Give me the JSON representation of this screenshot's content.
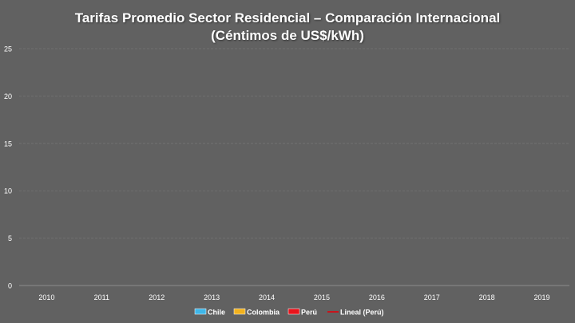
{
  "chart_data": {
    "type": "bar",
    "title_line1": "Tarifas Promedio Sector Residencial – Comparación Internacional",
    "title_line2": "(Céntimos de US$/kWh)",
    "categories": [
      "2010",
      "2011",
      "2012",
      "2013",
      "2014",
      "2015",
      "2016",
      "2017",
      "2018",
      "2019"
    ],
    "yticks": [
      "0",
      "5",
      "10",
      "15",
      "20",
      "25"
    ],
    "ylim": [
      0,
      25
    ],
    "grid": true,
    "legend_position": "bottom",
    "series": [
      {
        "name": "Chile",
        "kind": "bar",
        "color": "#3fb6e8",
        "values": [
          null,
          null,
          null,
          null,
          null,
          null,
          null,
          null,
          null,
          null
        ]
      },
      {
        "name": "Colombia",
        "kind": "bar",
        "color": "#f2b21e",
        "values": [
          null,
          null,
          null,
          null,
          null,
          null,
          null,
          null,
          null,
          null
        ]
      },
      {
        "name": "Perú",
        "kind": "bar",
        "color": "#e8141c",
        "values": [
          null,
          null,
          null,
          null,
          null,
          null,
          null,
          null,
          null,
          null
        ]
      },
      {
        "name": "Lineal (Perú)",
        "kind": "line",
        "color": "#c8141c",
        "values": [
          null,
          null,
          null,
          null,
          null,
          null,
          null,
          null,
          null,
          null
        ]
      }
    ]
  }
}
